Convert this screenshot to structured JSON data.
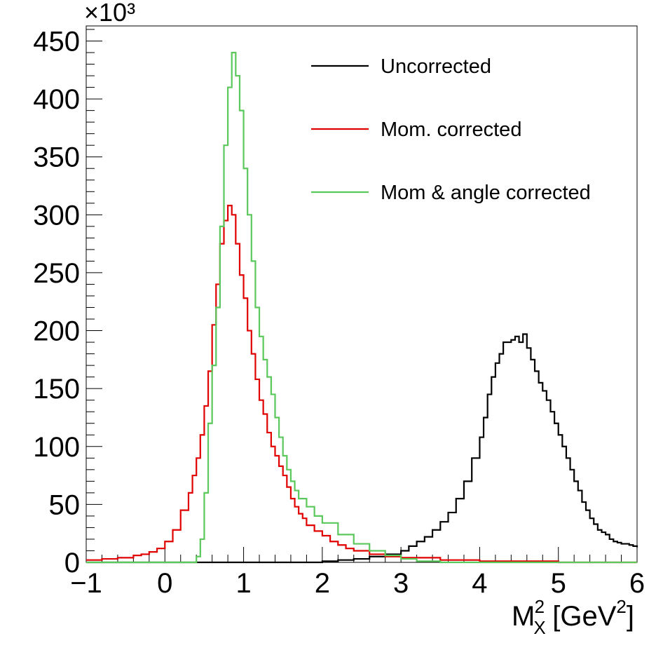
{
  "chart_data": {
    "type": "line",
    "style": "step-histogram",
    "x_tick_labels": [
      "−1",
      "0",
      "1",
      "2",
      "3",
      "4",
      "5",
      "6"
    ],
    "x_ticks": [
      -1,
      0,
      1,
      2,
      3,
      4,
      5,
      6
    ],
    "y_tick_labels": [
      "0",
      "50",
      "100",
      "150",
      "200",
      "250",
      "300",
      "350",
      "400",
      "450"
    ],
    "y_ticks": [
      0,
      50,
      100,
      150,
      200,
      250,
      300,
      350,
      400,
      450
    ],
    "y_multiplier": "×10³",
    "xlabel": {
      "base": "M",
      "sup": "2",
      "sub": "X",
      "unit_open": " [GeV",
      "unit_sup": "2",
      "unit_close": "]"
    },
    "xlim": [
      -1,
      6
    ],
    "ylim": [
      0,
      463
    ],
    "grid": false,
    "legend_position": "top-right",
    "series": [
      {
        "name": "Uncorrected",
        "color": "#000000",
        "x": [
          -1.0,
          -0.5,
          0.0,
          0.5,
          1.0,
          1.5,
          2.0,
          2.2,
          2.4,
          2.6,
          2.8,
          3.0,
          3.1,
          3.2,
          3.3,
          3.4,
          3.5,
          3.6,
          3.7,
          3.8,
          3.9,
          4.0,
          4.05,
          4.1,
          4.15,
          4.2,
          4.25,
          4.3,
          4.35,
          4.4,
          4.45,
          4.5,
          4.55,
          4.6,
          4.65,
          4.7,
          4.75,
          4.8,
          4.85,
          4.9,
          4.95,
          5.0,
          5.05,
          5.1,
          5.15,
          5.2,
          5.25,
          5.3,
          5.35,
          5.4,
          5.45,
          5.5,
          5.55,
          5.6,
          5.65,
          5.7,
          5.75,
          5.8,
          5.85,
          5.9,
          5.95,
          6.0
        ],
        "y": [
          0,
          0,
          0,
          0,
          0,
          0,
          1,
          2,
          3,
          5,
          7,
          10,
          14,
          18,
          22,
          28,
          35,
          43,
          55,
          70,
          90,
          108,
          125,
          145,
          160,
          172,
          180,
          190,
          190,
          192,
          195,
          190,
          197,
          185,
          175,
          165,
          155,
          148,
          140,
          130,
          120,
          110,
          100,
          90,
          80,
          70,
          62,
          52,
          45,
          38,
          33,
          28,
          26,
          24,
          20,
          18,
          17,
          16,
          16,
          15,
          14,
          13
        ]
      },
      {
        "name": "Mom. corrected",
        "color": "#e00000",
        "x": [
          -1.0,
          -0.8,
          -0.6,
          -0.4,
          -0.3,
          -0.2,
          -0.1,
          0.0,
          0.1,
          0.2,
          0.3,
          0.35,
          0.4,
          0.45,
          0.5,
          0.55,
          0.6,
          0.65,
          0.7,
          0.75,
          0.8,
          0.85,
          0.9,
          0.95,
          1.0,
          1.05,
          1.1,
          1.15,
          1.2,
          1.25,
          1.3,
          1.35,
          1.4,
          1.45,
          1.5,
          1.55,
          1.6,
          1.65,
          1.7,
          1.75,
          1.8,
          1.9,
          2.0,
          2.1,
          2.2,
          2.3,
          2.4,
          2.6,
          2.8,
          3.0,
          3.5,
          4.0,
          5.0,
          6.0
        ],
        "y": [
          2,
          3,
          4,
          6,
          7,
          9,
          12,
          18,
          28,
          45,
          60,
          75,
          90,
          110,
          135,
          165,
          205,
          240,
          275,
          295,
          308,
          300,
          275,
          248,
          228,
          200,
          180,
          158,
          140,
          128,
          112,
          100,
          92,
          83,
          75,
          65,
          55,
          48,
          42,
          38,
          32,
          27,
          23,
          18,
          15,
          12,
          10,
          7,
          5,
          4,
          2,
          1,
          0,
          0
        ]
      },
      {
        "name": "Mom & angle corrected",
        "color": "#5ac85a",
        "x": [
          -1.0,
          0.0,
          0.3,
          0.4,
          0.45,
          0.5,
          0.55,
          0.6,
          0.65,
          0.7,
          0.75,
          0.8,
          0.85,
          0.9,
          0.95,
          1.0,
          1.05,
          1.1,
          1.15,
          1.2,
          1.25,
          1.3,
          1.35,
          1.4,
          1.45,
          1.5,
          1.55,
          1.6,
          1.65,
          1.7,
          1.8,
          1.9,
          2.0,
          2.2,
          2.4,
          2.6,
          2.8,
          3.0,
          3.2,
          3.5
        ],
        "y": [
          0,
          0,
          0,
          5,
          20,
          60,
          120,
          170,
          220,
          290,
          360,
          410,
          440,
          420,
          390,
          340,
          300,
          260,
          220,
          195,
          175,
          160,
          145,
          125,
          108,
          92,
          80,
          70,
          62,
          55,
          48,
          40,
          34,
          24,
          16,
          10,
          6,
          3,
          1,
          0
        ]
      }
    ]
  }
}
